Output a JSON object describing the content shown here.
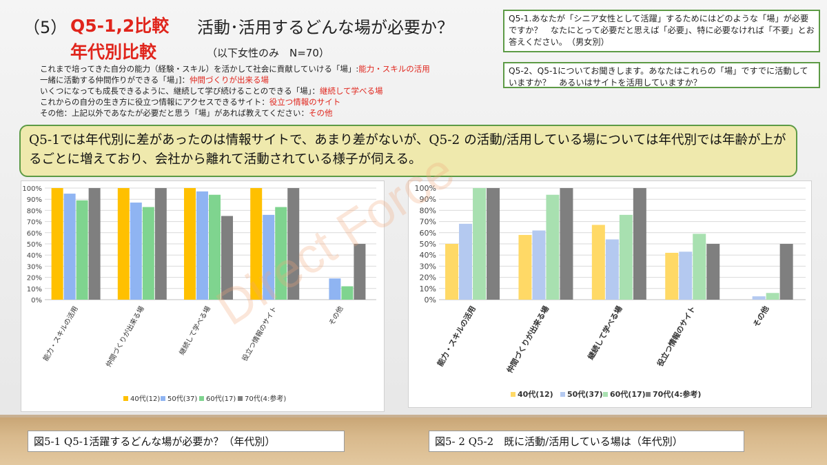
{
  "header": {
    "num": "（5）",
    "title_red": "Q5-1,2比較",
    "title_rest": "活動･活用するどんな場が必要か？",
    "title_red2": "年代別比較",
    "subtitle": "（以下女性のみ　N=70）"
  },
  "definitions": [
    {
      "text": "これまで培ってきた自分の能力（経験・スキル）を活かして社会に貢献していける「場」:",
      "label": "能力・スキルの活用"
    },
    {
      "text": "一緒に活動する仲間作りができる「場」]：",
      "label": "仲間づくりが出来る場"
    },
    {
      "text": "いくつになっても成長できるように、継続して学び続けることのできる「場」：",
      "label": "継続して学べる場"
    },
    {
      "text": "これからの自分の生き方に役立つ情報にアクセスできるサイト：",
      "label": "役立つ情報のサイト"
    },
    {
      "text": "その他：上記以外であなたが必要だと思う「場」があれば教えてください：",
      "label": "その他"
    }
  ],
  "question1": "Q5-1.あなたが「シニア女性として活躍」するためにはどのような「場」が必要ですか？　なたにとって必要だと思えば「必要」、特に必要なければ「不要」とお答えください。　（男女別）",
  "question2": "Q5-2、Q5-1についてお聞きします。あなたはこれらの「場」ですでに活動していますか？　あるいはサイトを活用していますか？",
  "summary": "Q5-1では年代別に差があったのは情報サイトで、あまり差がないが、Q5-2 の活動/活用している場については年代別では年齢が上がるごとに増えており、会社から離れて活動されている様子が伺える。",
  "watermark": "Direct Force",
  "captions": {
    "left": "図5-1 Q5-1活躍するどんな場が必要か？（年代別）",
    "right": "図5- 2 Q5-2　既に活動/活用している場は（年代別）"
  },
  "colors": {
    "s40": "#ffc000",
    "s50": "#8fb4f2",
    "s60": "#7fd48f",
    "s70": "#7f7f7f",
    "s40_right": "#ffd966",
    "s50_right": "#b4c9f0",
    "s60_right": "#a8e0b0",
    "s70_right": "#7f7f7f"
  },
  "chart_data": [
    {
      "type": "bar",
      "categories": [
        "能力・スキルの活用",
        "仲間づくりが出来る場",
        "継続して学べる場",
        "役立つ情報のサイト",
        "その他"
      ],
      "ylim": [
        0,
        100
      ],
      "yticks": [
        "0%",
        "10%",
        "20%",
        "30%",
        "40%",
        "50%",
        "60%",
        "70%",
        "80%",
        "90%",
        "100%"
      ],
      "series": [
        {
          "name": "40代(12)",
          "values": [
            100,
            100,
            100,
            100,
            0
          ]
        },
        {
          "name": "50代(37)",
          "values": [
            95,
            87,
            97,
            76,
            19
          ]
        },
        {
          "name": "60代(17)",
          "values": [
            89,
            83,
            94,
            83,
            12
          ]
        },
        {
          "name": "70代(4:参考)",
          "values": [
            100,
            100,
            75,
            100,
            50
          ]
        }
      ]
    },
    {
      "type": "bar",
      "categories": [
        "能力・スキルの活用",
        "仲間づくりが出来る場",
        "継続して学べる場",
        "役立つ情報のサイト",
        "その他"
      ],
      "ylim": [
        0,
        100
      ],
      "yticks": [
        "0%",
        "10%",
        "20%",
        "30%",
        "40%",
        "50%",
        "60%",
        "70%",
        "80%",
        "90%",
        "100%"
      ],
      "series": [
        {
          "name": "40代(12)",
          "values": [
            50,
            58,
            67,
            42,
            0
          ]
        },
        {
          "name": "50代(37)",
          "values": [
            68,
            62,
            54,
            43,
            3
          ]
        },
        {
          "name": "60代(17)",
          "values": [
            100,
            94,
            76,
            59,
            6
          ]
        },
        {
          "name": "70代(4:参考)",
          "values": [
            100,
            100,
            100,
            50,
            50
          ]
        }
      ]
    }
  ]
}
